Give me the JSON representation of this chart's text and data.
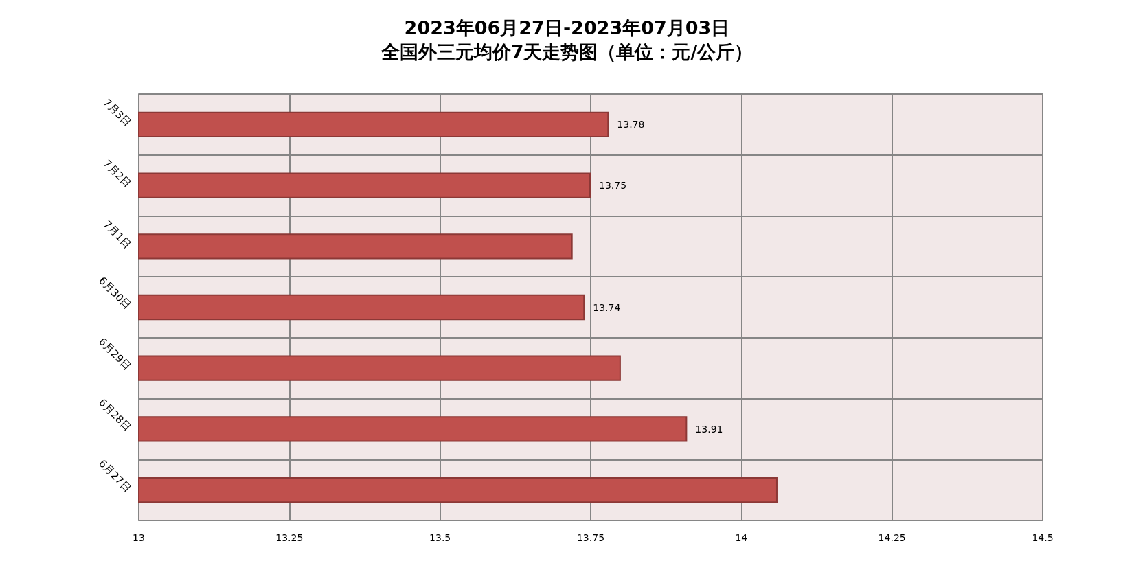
{
  "chart_data": {
    "type": "bar",
    "orientation": "horizontal",
    "title": "2023年06月27日-2023年07月03日",
    "subtitle": "全国外三元均价7天走势图（单位：元/公斤）",
    "categories": [
      "7月3日",
      "7月2日",
      "7月1日",
      "6月30日",
      "6月29日",
      "6月28日",
      "6月27日"
    ],
    "values": [
      13.78,
      13.75,
      13.72,
      13.74,
      13.8,
      13.91,
      14.06
    ],
    "value_labels": [
      "13.78",
      "13.75",
      null,
      "13.74",
      null,
      "13.91",
      null
    ],
    "color": "#c0504d",
    "xlim": [
      13,
      14.5
    ],
    "xticks": [
      13,
      13.25,
      13.5,
      13.75,
      14,
      14.25,
      14.5
    ],
    "grid": true
  }
}
